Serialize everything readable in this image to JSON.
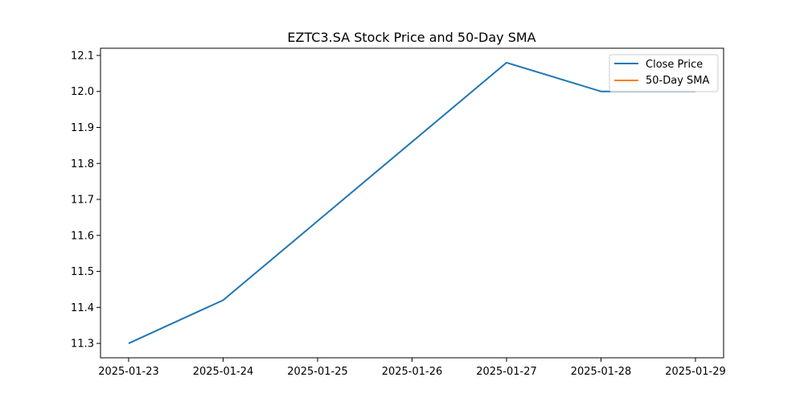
{
  "chart_data": {
    "type": "line",
    "title": "EZTC3.SA Stock Price and 50-Day SMA",
    "xlabel": "",
    "ylabel": "",
    "x": [
      "2025-01-23",
      "2025-01-24",
      "2025-01-25",
      "2025-01-26",
      "2025-01-27",
      "2025-01-28",
      "2025-01-29"
    ],
    "x_tick_labels": [
      "2025-01-23",
      "2025-01-24",
      "2025-01-25",
      "2025-01-26",
      "2025-01-27",
      "2025-01-28",
      "2025-01-29"
    ],
    "y_ticks": [
      11.3,
      11.4,
      11.5,
      11.6,
      11.7,
      11.8,
      11.9,
      12.0,
      12.1
    ],
    "y_tick_labels": [
      "11.3",
      "11.4",
      "11.5",
      "11.6",
      "11.7",
      "11.8",
      "11.9",
      "12.0",
      "12.1"
    ],
    "ylim": [
      11.26,
      12.12
    ],
    "grid": false,
    "legend_position": "top-right",
    "series": [
      {
        "name": "Close Price",
        "color": "#1f77b4",
        "points": [
          {
            "x": "2025-01-23",
            "y": 11.3
          },
          {
            "x": "2025-01-24",
            "y": 11.42
          },
          {
            "x": "2025-01-27",
            "y": 12.08
          },
          {
            "x": "2025-01-28",
            "y": 12.0
          },
          {
            "x": "2025-01-29",
            "y": 12.0
          }
        ]
      },
      {
        "name": "50-Day SMA",
        "color": "#ff7f0e",
        "points": []
      }
    ]
  }
}
